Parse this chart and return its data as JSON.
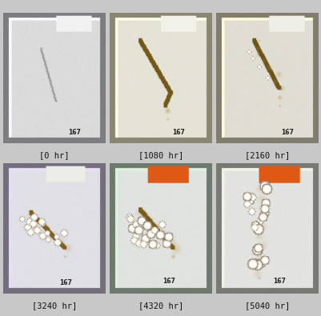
{
  "labels": [
    "[0 hr]",
    "[1080 hr]",
    "[2160 hr]",
    "[3240 hr]",
    "[4320 hr]",
    "[5040 hr]"
  ],
  "nrows": 2,
  "ncols": 3,
  "fig_width": 4.02,
  "fig_height": 3.95,
  "background_color": "#c8c8c8",
  "label_fontsize": 7.5,
  "label_color": "#111111"
}
